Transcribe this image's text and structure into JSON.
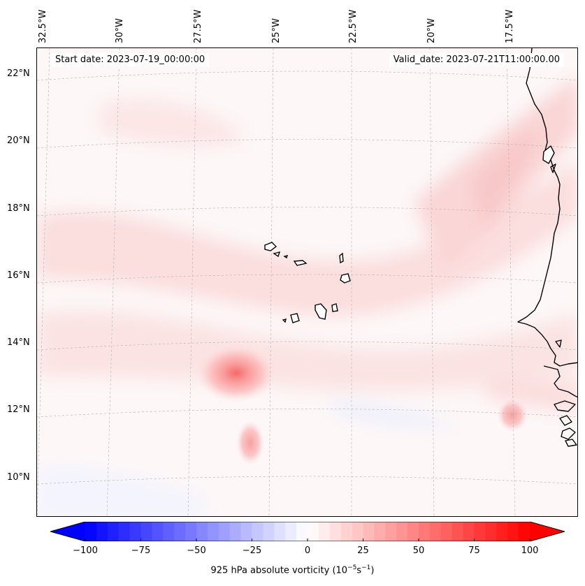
{
  "map": {
    "start_date": "Start date: 2023-07-19_00:00:00",
    "valid_date": "Valid_date: 2023-07-21T11:00:00.00",
    "lon_labels": [
      "32.5°W",
      "30°W",
      "27.5°W",
      "25°W",
      "22.5°W",
      "20°W",
      "17.5°W"
    ],
    "lat_labels": [
      "22°N",
      "20°N",
      "18°N",
      "16°N",
      "14°N",
      "12°N",
      "10°N"
    ],
    "coastline_color": "#000000",
    "gridline_color": "#b0b0b0"
  },
  "colorbar": {
    "label": "925 hPa absolute vorticity (10",
    "label_exp1": "−5",
    "label_mid": "s",
    "label_exp2": "−1",
    "label_end": ")",
    "tick_labels": [
      "−100",
      "−75",
      "−50",
      "−25",
      "0",
      "25",
      "50",
      "75",
      "100"
    ],
    "min": -100,
    "max": 100,
    "levels": 40,
    "min_color": "#0000ff",
    "mid_color": "#ffffff",
    "max_color": "#ff0000"
  }
}
